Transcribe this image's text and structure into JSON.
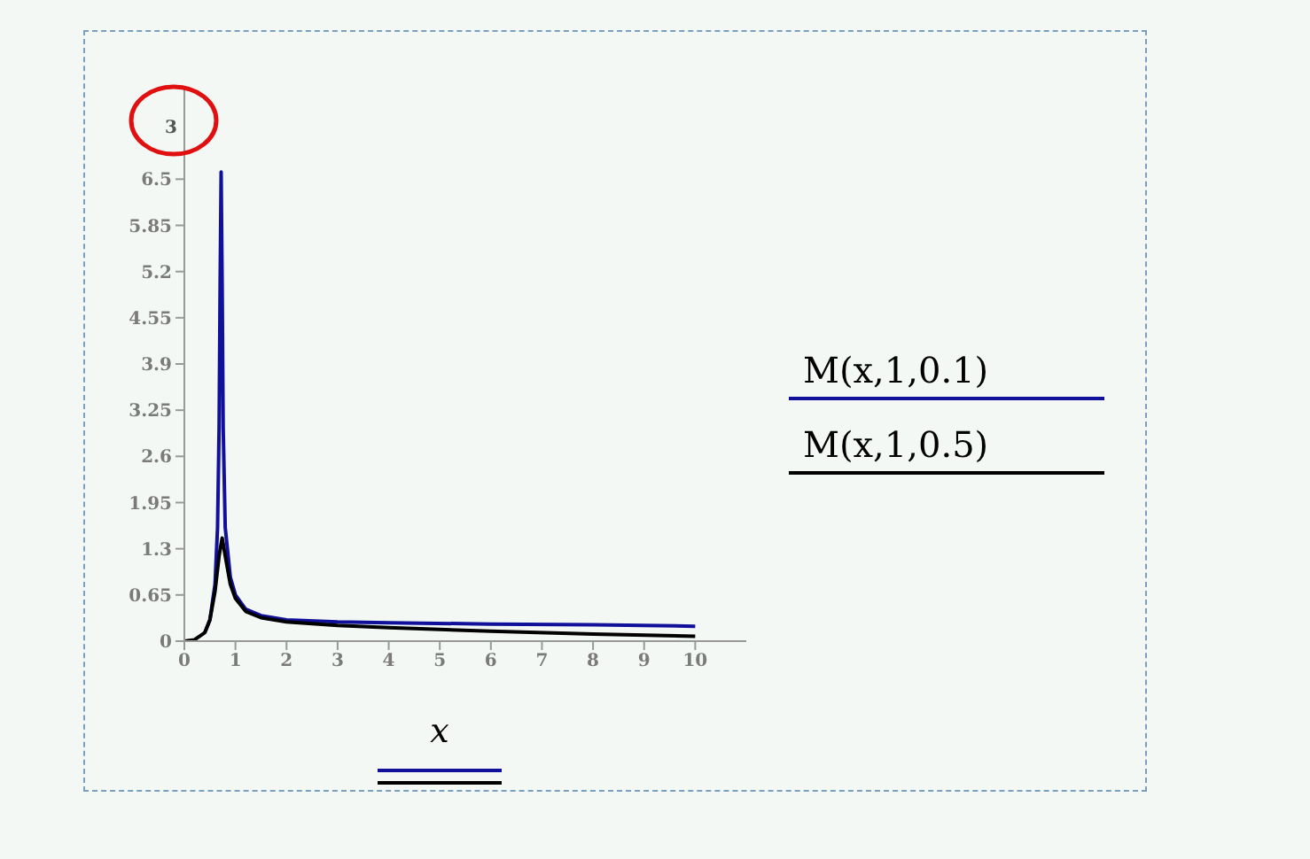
{
  "chart_data": {
    "type": "line",
    "xlabel": "x",
    "annotations": [
      "3"
    ],
    "xlim": [
      0,
      11
    ],
    "ylim": [
      0,
      7.8
    ],
    "xticks": [
      0,
      1,
      2,
      3,
      4,
      5,
      6,
      7,
      8,
      9,
      10
    ],
    "yticks": [
      0,
      0.65,
      1.3,
      1.95,
      2.6,
      3.25,
      3.9,
      4.55,
      5.2,
      5.85,
      6.5
    ],
    "grid": false,
    "legend": "right",
    "marker": "none",
    "line_style": "solid",
    "series": [
      {
        "name": "M(x,1,0.1)",
        "color": "#10109a",
        "x": [
          0.4,
          0.5,
          0.6,
          0.65,
          0.68,
          0.7,
          0.72,
          0.74,
          0.76,
          0.8,
          0.9,
          1,
          1.2,
          1.5,
          2,
          3,
          4,
          6,
          8,
          10
        ],
        "values": [
          0.12,
          0.3,
          0.8,
          1.6,
          3,
          5,
          6.6,
          5,
          3,
          1.6,
          0.9,
          0.65,
          0.45,
          0.36,
          0.3,
          0.27,
          0.26,
          0.24,
          0.23,
          0.21
        ]
      },
      {
        "name": "M(x,1,0.5)",
        "color": "#000000",
        "x": [
          0,
          0.2,
          0.4,
          0.5,
          0.6,
          0.68,
          0.74,
          0.8,
          0.9,
          1,
          1.2,
          1.5,
          2,
          3,
          4,
          6,
          8,
          10
        ],
        "values": [
          0,
          0.02,
          0.12,
          0.3,
          0.7,
          1.2,
          1.45,
          1.2,
          0.8,
          0.6,
          0.42,
          0.33,
          0.27,
          0.22,
          0.19,
          0.14,
          0.1,
          0.07
        ]
      }
    ]
  }
}
